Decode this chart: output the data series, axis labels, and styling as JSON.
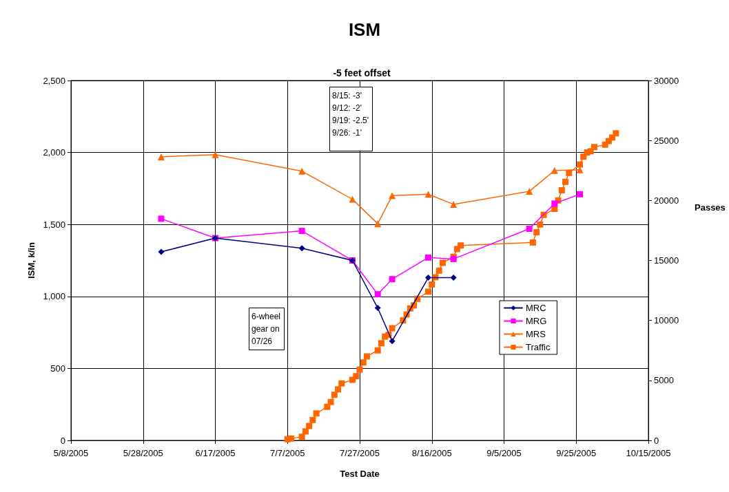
{
  "chart_data": {
    "type": "line",
    "title": "ISM",
    "subtitle": "-5 feet offset",
    "xlabel": "Test Date",
    "ylabel": "ISM, k/in",
    "y2label": "Passes",
    "annotations": [
      "8/15: -3'\n9/12: -2'\n9/19: -2.5'\n9/26: -1'",
      "6-wheel\ngear on\n07/26"
    ],
    "xlim": [
      "2005-05-08",
      "2005-10-15"
    ],
    "xticks": [
      {
        "value": "2005-05-08",
        "label": "5/8/2005"
      },
      {
        "value": "2005-05-28",
        "label": "5/28/2005"
      },
      {
        "value": "2005-06-17",
        "label": "6/17/2005"
      },
      {
        "value": "2005-07-07",
        "label": "7/7/2005"
      },
      {
        "value": "2005-07-27",
        "label": "7/27/2005"
      },
      {
        "value": "2005-08-16",
        "label": "8/16/2005"
      },
      {
        "value": "2005-09-05",
        "label": "9/5/2005"
      },
      {
        "value": "2005-09-25",
        "label": "9/25/2005"
      },
      {
        "value": "2005-10-15",
        "label": "10/15/2005"
      }
    ],
    "ylim": [
      0,
      2500
    ],
    "yticks": [
      0,
      500,
      {
        "value": 1000,
        "label": "1,000"
      },
      {
        "value": 1500,
        "label": "1,500"
      },
      {
        "value": 2000,
        "label": "2,000"
      },
      {
        "value": 2500,
        "label": "2,500"
      }
    ],
    "y2lim": [
      0,
      30000
    ],
    "y2ticks": [
      0,
      5000,
      10000,
      15000,
      20000,
      25000,
      30000
    ],
    "grid": true,
    "legend": "right",
    "line_style": "solid",
    "series": [
      {
        "name": "MRC",
        "color": "#000080",
        "marker": "diamond",
        "x": [
          "2005-06-02",
          "2005-06-17",
          "2005-07-11",
          "2005-07-25",
          "2005-08-01",
          "2005-08-05",
          "2005-08-15",
          "2005-08-22"
        ],
        "values": [
          1310,
          1405,
          1335,
          1250,
          920,
          690,
          1130,
          1130
        ]
      },
      {
        "name": "MRG",
        "color": "#ff00ff",
        "marker": "square",
        "x": [
          "2005-06-02",
          "2005-06-17",
          "2005-07-11",
          "2005-07-25",
          "2005-08-01",
          "2005-08-05",
          "2005-08-15",
          "2005-08-22",
          "2005-09-12",
          "2005-09-19",
          "2005-09-26"
        ],
        "values": [
          1540,
          1405,
          1455,
          1250,
          1015,
          1120,
          1270,
          1260,
          1470,
          1645,
          1710
        ]
      },
      {
        "name": "MRS",
        "color": "#ff6600",
        "marker": "triangle",
        "x": [
          "2005-06-02",
          "2005-06-17",
          "2005-07-11",
          "2005-07-25",
          "2005-08-01",
          "2005-08-05",
          "2005-08-15",
          "2005-08-22",
          "2005-09-12",
          "2005-09-19",
          "2005-09-26"
        ],
        "values": [
          1970,
          1985,
          1870,
          1675,
          1505,
          1700,
          1710,
          1640,
          1730,
          1875,
          1880
        ]
      },
      {
        "name": "Traffic",
        "color": "#ff6600",
        "marker": "square",
        "axis": "y2",
        "x": [
          "2005-07-07",
          "2005-07-08",
          "2005-07-11",
          "2005-07-12",
          "2005-07-13",
          "2005-07-14",
          "2005-07-15",
          "2005-07-18",
          "2005-07-19",
          "2005-07-20",
          "2005-07-21",
          "2005-07-22",
          "2005-07-25",
          "2005-07-26",
          "2005-07-27",
          "2005-07-28",
          "2005-07-29",
          "2005-08-01",
          "2005-08-02",
          "2005-08-03",
          "2005-08-04",
          "2005-08-05",
          "2005-08-08",
          "2005-08-09",
          "2005-08-10",
          "2005-08-11",
          "2005-08-12",
          "2005-08-15",
          "2005-08-16",
          "2005-08-17",
          "2005-08-18",
          "2005-08-19",
          "2005-08-22",
          "2005-08-23",
          "2005-08-24",
          "2005-09-13",
          "2005-09-14",
          "2005-09-15",
          "2005-09-16",
          "2005-09-19",
          "2005-09-20",
          "2005-09-21",
          "2005-09-22",
          "2005-09-23",
          "2005-09-26",
          "2005-09-27",
          "2005-09-28",
          "2005-09-29",
          "2005-09-30",
          "2005-10-03",
          "2005-10-04",
          "2005-10-05",
          "2005-10-06"
        ],
        "values": [
          100,
          150,
          300,
          750,
          1200,
          1700,
          2250,
          2800,
          3200,
          3800,
          4250,
          4750,
          5050,
          5350,
          5900,
          6500,
          7000,
          7500,
          8100,
          8650,
          8800,
          9350,
          10000,
          10500,
          11000,
          11250,
          11800,
          12400,
          13000,
          13600,
          14150,
          14800,
          15300,
          15950,
          16250,
          16500,
          17350,
          18000,
          18800,
          19300,
          20000,
          20850,
          21550,
          22300,
          23000,
          23650,
          24000,
          24100,
          24450,
          24650,
          24950,
          25250,
          25600
        ]
      }
    ]
  }
}
